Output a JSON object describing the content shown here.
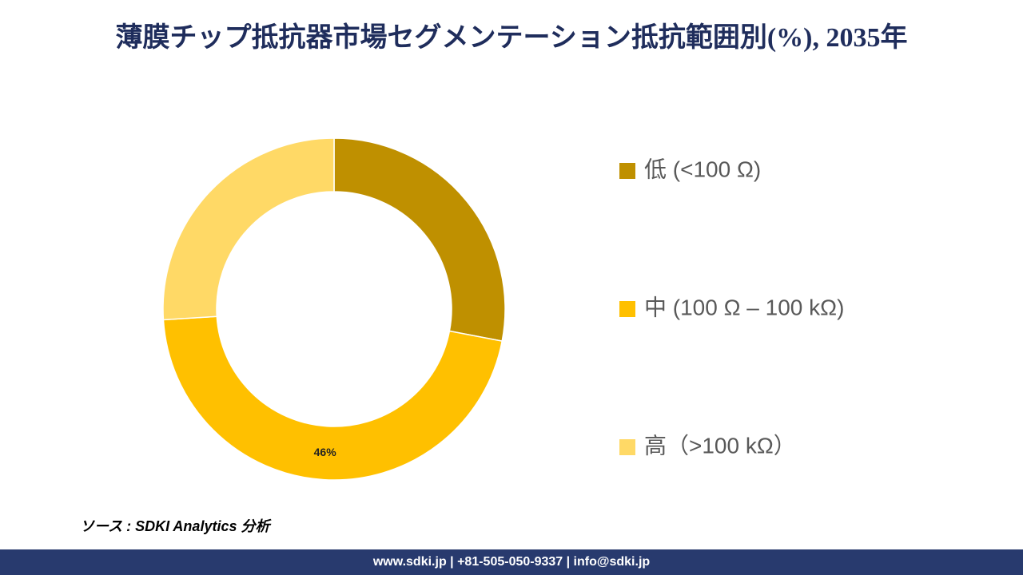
{
  "chart_data": {
    "type": "donut",
    "title": "薄膜チップ抵抗器市場セグメンテーション抵抗範囲別(%), 2035年",
    "categories": [
      "低 (<100 Ω)",
      "中 (100 Ω – 100 kΩ)",
      "高（>100 kΩ）"
    ],
    "values": [
      28,
      46,
      26
    ],
    "value_labels": [
      null,
      "46%",
      null
    ],
    "colors": [
      "#bf9000",
      "#ffc000",
      "#ffd966"
    ],
    "source": "ソース : SDKI Analytics 分析",
    "footer": "www.sdki.jp | +81-505-050-9337 | info@sdki.jp"
  }
}
